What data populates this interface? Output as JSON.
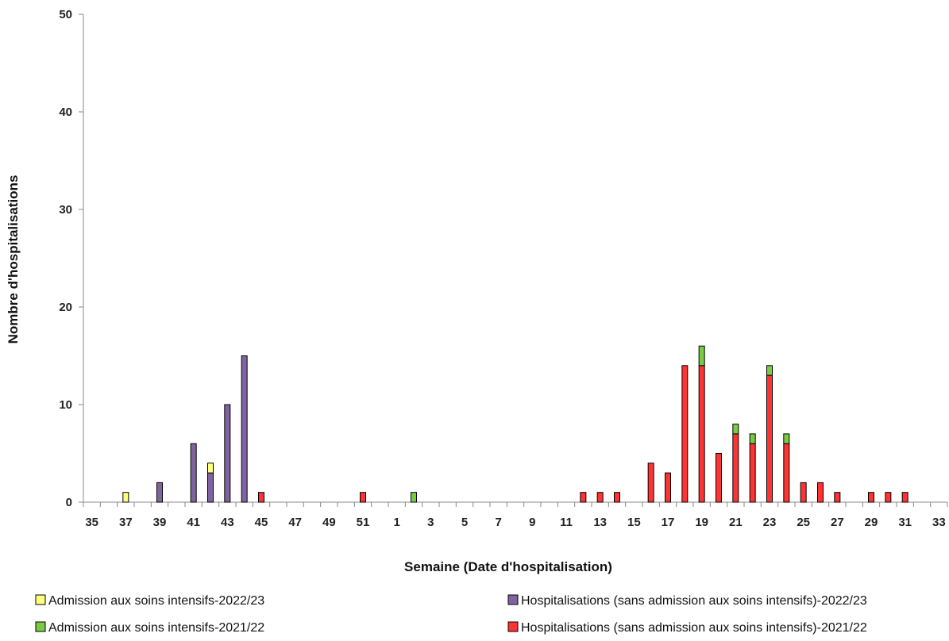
{
  "chart_data": {
    "type": "bar",
    "stacked": true,
    "xlabel": "Semaine (Date d'hospitalisation)",
    "ylabel": "Nombre d'hospitalisations",
    "ylim": [
      0,
      50
    ],
    "yticks": [
      0,
      10,
      20,
      30,
      40,
      50
    ],
    "grid": false,
    "legend": "bottom",
    "categories": [
      "35",
      "36",
      "37",
      "38",
      "39",
      "40",
      "41",
      "42",
      "43",
      "44",
      "45",
      "46",
      "47",
      "48",
      "49",
      "50",
      "51",
      "52",
      "1",
      "2",
      "3",
      "4",
      "5",
      "6",
      "7",
      "8",
      "9",
      "10",
      "11",
      "12",
      "13",
      "14",
      "15",
      "16",
      "17",
      "18",
      "19",
      "20",
      "21",
      "22",
      "23",
      "24",
      "25",
      "26",
      "27",
      "28",
      "29",
      "30",
      "31",
      "32",
      "33"
    ],
    "xtick_labels": [
      "35",
      "37",
      "39",
      "41",
      "43",
      "45",
      "47",
      "49",
      "51",
      "1",
      "3",
      "5",
      "7",
      "9",
      "11",
      "13",
      "15",
      "17",
      "19",
      "21",
      "23",
      "25",
      "27",
      "29",
      "31",
      "33"
    ],
    "series": [
      {
        "name": "Hospitalisations (sans admission aux soins intensifs)-2022/23",
        "color": "#8064a2",
        "values": [
          0,
          0,
          0,
          0,
          2,
          0,
          6,
          3,
          10,
          15,
          0,
          0,
          0,
          0,
          0,
          0,
          0,
          0,
          0,
          0,
          0,
          0,
          0,
          0,
          0,
          0,
          0,
          0,
          0,
          0,
          0,
          0,
          0,
          0,
          0,
          0,
          0,
          0,
          0,
          0,
          0,
          0,
          0,
          0,
          0,
          0,
          0,
          0,
          0,
          0,
          0
        ]
      },
      {
        "name": "Admission aux soins intensifs-2022/23",
        "color": "#ffff80",
        "values": [
          0,
          0,
          1,
          0,
          0,
          0,
          0,
          1,
          0,
          0,
          0,
          0,
          0,
          0,
          0,
          0,
          0,
          0,
          0,
          0,
          0,
          0,
          0,
          0,
          0,
          0,
          0,
          0,
          0,
          0,
          0,
          0,
          0,
          0,
          0,
          0,
          0,
          0,
          0,
          0,
          0,
          0,
          0,
          0,
          0,
          0,
          0,
          0,
          0,
          0,
          0
        ]
      },
      {
        "name": "Hospitalisations (sans admission aux soins intensifs)-2021/22",
        "color": "#ff3333",
        "values": [
          0,
          0,
          0,
          0,
          0,
          0,
          0,
          0,
          0,
          0,
          1,
          0,
          0,
          0,
          0,
          0,
          1,
          0,
          0,
          0,
          0,
          0,
          0,
          0,
          0,
          0,
          0,
          0,
          0,
          1,
          1,
          1,
          0,
          4,
          3,
          14,
          14,
          5,
          7,
          6,
          13,
          6,
          2,
          2,
          1,
          0,
          1,
          1,
          1,
          0,
          0
        ]
      },
      {
        "name": "Admission aux soins intensifs-2021/22",
        "color": "#77cc44",
        "values": [
          0,
          0,
          0,
          0,
          0,
          0,
          0,
          0,
          0,
          0,
          0,
          0,
          0,
          0,
          0,
          0,
          0,
          0,
          0,
          1,
          0,
          0,
          0,
          0,
          0,
          0,
          0,
          0,
          0,
          0,
          0,
          0,
          0,
          0,
          0,
          0,
          2,
          0,
          1,
          1,
          1,
          1,
          0,
          0,
          0,
          0,
          0,
          0,
          0,
          0,
          0
        ]
      }
    ],
    "legend_order": [
      1,
      0,
      3,
      2
    ]
  }
}
